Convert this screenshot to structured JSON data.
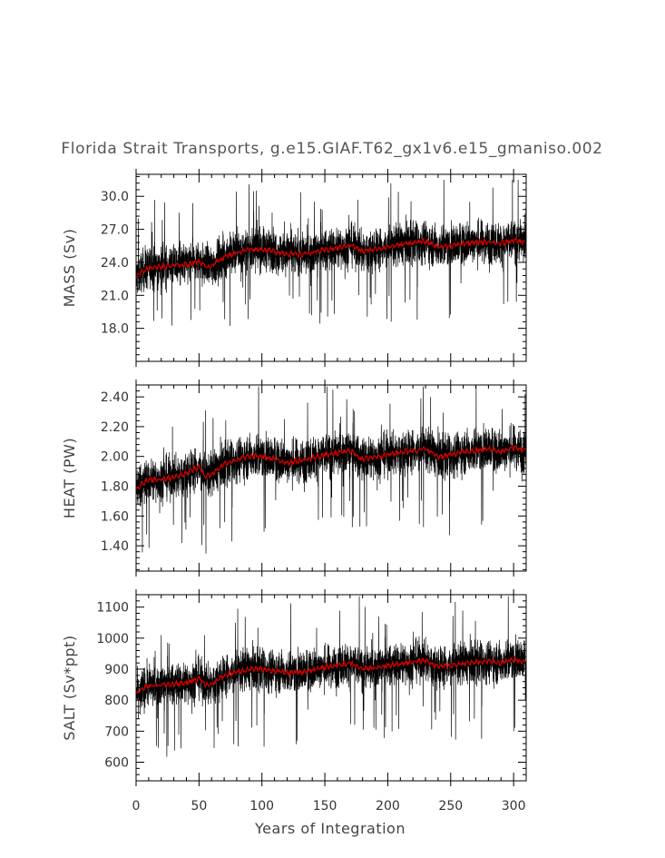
{
  "title": "Florida Strait Transports, g.e15.GIAF.T62_gx1v6.e15_gmaniso.002",
  "colors": {
    "raw": "#000000",
    "smoothed": "#d40000",
    "axis": "#000000",
    "text": "#444444"
  },
  "chart_data": [
    {
      "type": "line",
      "ylabel": "MASS (Sv)",
      "xlabel": "",
      "xlim": [
        0,
        310
      ],
      "ylim": [
        15.0,
        32.0
      ],
      "yticks": [
        18.0,
        21.0,
        24.0,
        27.0,
        30.0
      ],
      "ytick_labels": [
        "18.0",
        "21.0",
        "24.0",
        "27.0",
        "30.0"
      ],
      "x_tick_labels_shown": false,
      "series": [
        {
          "style": "raw",
          "noise": 1.7,
          "range": [
            16.2,
            31.5
          ]
        },
        {
          "style": "smoothed",
          "x": [
            0,
            5,
            10,
            20,
            30,
            40,
            50,
            55,
            60,
            70,
            80,
            90,
            100,
            110,
            120,
            130,
            140,
            150,
            160,
            170,
            180,
            190,
            200,
            210,
            220,
            230,
            240,
            250,
            260,
            270,
            280,
            290,
            300,
            310
          ],
          "values": [
            22.6,
            23.2,
            23.5,
            23.6,
            23.7,
            23.8,
            24.1,
            23.6,
            23.7,
            24.5,
            24.9,
            25.2,
            25.2,
            25.0,
            24.8,
            24.7,
            24.9,
            25.1,
            25.3,
            25.6,
            25.0,
            25.2,
            25.4,
            25.6,
            25.8,
            25.9,
            25.4,
            25.5,
            25.7,
            25.8,
            25.9,
            25.7,
            26.0,
            25.8
          ]
        }
      ]
    },
    {
      "type": "line",
      "ylabel": "HEAT (PW)",
      "xlabel": "",
      "xlim": [
        0,
        310
      ],
      "ylim": [
        1.23,
        2.48
      ],
      "yticks": [
        1.4,
        1.6,
        1.8,
        2.0,
        2.2,
        2.4
      ],
      "ytick_labels": [
        "1.40",
        "1.60",
        "1.80",
        "2.00",
        "2.20",
        "2.40"
      ],
      "x_tick_labels_shown": false,
      "series": [
        {
          "style": "raw",
          "noise": 0.13,
          "range": [
            1.25,
            2.47
          ]
        },
        {
          "style": "smoothed",
          "x": [
            0,
            5,
            10,
            20,
            30,
            40,
            50,
            55,
            60,
            70,
            80,
            90,
            100,
            110,
            120,
            130,
            140,
            150,
            160,
            170,
            180,
            190,
            200,
            210,
            220,
            230,
            240,
            250,
            260,
            270,
            280,
            290,
            300,
            310
          ],
          "values": [
            1.78,
            1.82,
            1.84,
            1.85,
            1.86,
            1.89,
            1.93,
            1.87,
            1.88,
            1.95,
            1.98,
            2.0,
            2.0,
            1.98,
            1.96,
            1.97,
            1.99,
            2.01,
            2.02,
            2.04,
            1.98,
            2.0,
            2.01,
            2.03,
            2.04,
            2.05,
            2.0,
            2.01,
            2.03,
            2.04,
            2.05,
            2.03,
            2.06,
            2.04
          ]
        }
      ]
    },
    {
      "type": "line",
      "ylabel": "SALT (Sv*ppt)",
      "xlabel": "Years of Integration",
      "xlim": [
        0,
        310
      ],
      "ylim": [
        540,
        1140
      ],
      "yticks": [
        600,
        700,
        800,
        900,
        1000,
        1100
      ],
      "ytick_labels": [
        "600",
        "700",
        "800",
        "900",
        "1000",
        "1100"
      ],
      "x_ticks": [
        0,
        50,
        100,
        150,
        200,
        250,
        300
      ],
      "x_tick_labels": [
        "0",
        "50",
        "100",
        "150",
        "200",
        "250",
        "300"
      ],
      "x_tick_labels_shown": true,
      "series": [
        {
          "style": "raw",
          "noise": 60,
          "range": [
            560,
            1135
          ]
        },
        {
          "style": "smoothed",
          "x": [
            0,
            5,
            10,
            20,
            30,
            40,
            50,
            55,
            60,
            70,
            80,
            90,
            100,
            110,
            120,
            130,
            140,
            150,
            160,
            170,
            180,
            190,
            200,
            210,
            220,
            230,
            240,
            250,
            260,
            270,
            280,
            290,
            300,
            310
          ],
          "values": [
            818,
            838,
            846,
            848,
            852,
            856,
            870,
            850,
            852,
            880,
            892,
            900,
            900,
            895,
            888,
            890,
            898,
            906,
            912,
            920,
            900,
            906,
            912,
            918,
            924,
            928,
            908,
            912,
            918,
            922,
            926,
            920,
            932,
            924
          ]
        }
      ]
    }
  ]
}
